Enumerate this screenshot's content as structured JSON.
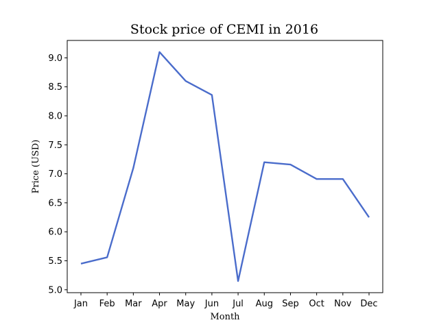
{
  "chart_data": {
    "type": "line",
    "title": "Stock price of CEMI in 2016",
    "xlabel": "Month",
    "ylabel": "Price (USD)",
    "categories": [
      "Jan",
      "Feb",
      "Mar",
      "Apr",
      "May",
      "Jun",
      "Jul",
      "Aug",
      "Sep",
      "Oct",
      "Nov",
      "Dec"
    ],
    "series": [
      {
        "values": [
          5.45,
          5.56,
          7.1,
          9.1,
          8.6,
          8.36,
          5.15,
          7.2,
          7.16,
          6.91,
          6.91,
          6.25
        ],
        "color": "#4a6ccb"
      }
    ],
    "ylim": [
      4.95,
      9.3
    ],
    "yticks": [
      "5.0",
      "5.5",
      "6.0",
      "6.5",
      "7.0",
      "7.5",
      "8.0",
      "8.5",
      "9.0"
    ],
    "grid": false,
    "legend": "none"
  }
}
